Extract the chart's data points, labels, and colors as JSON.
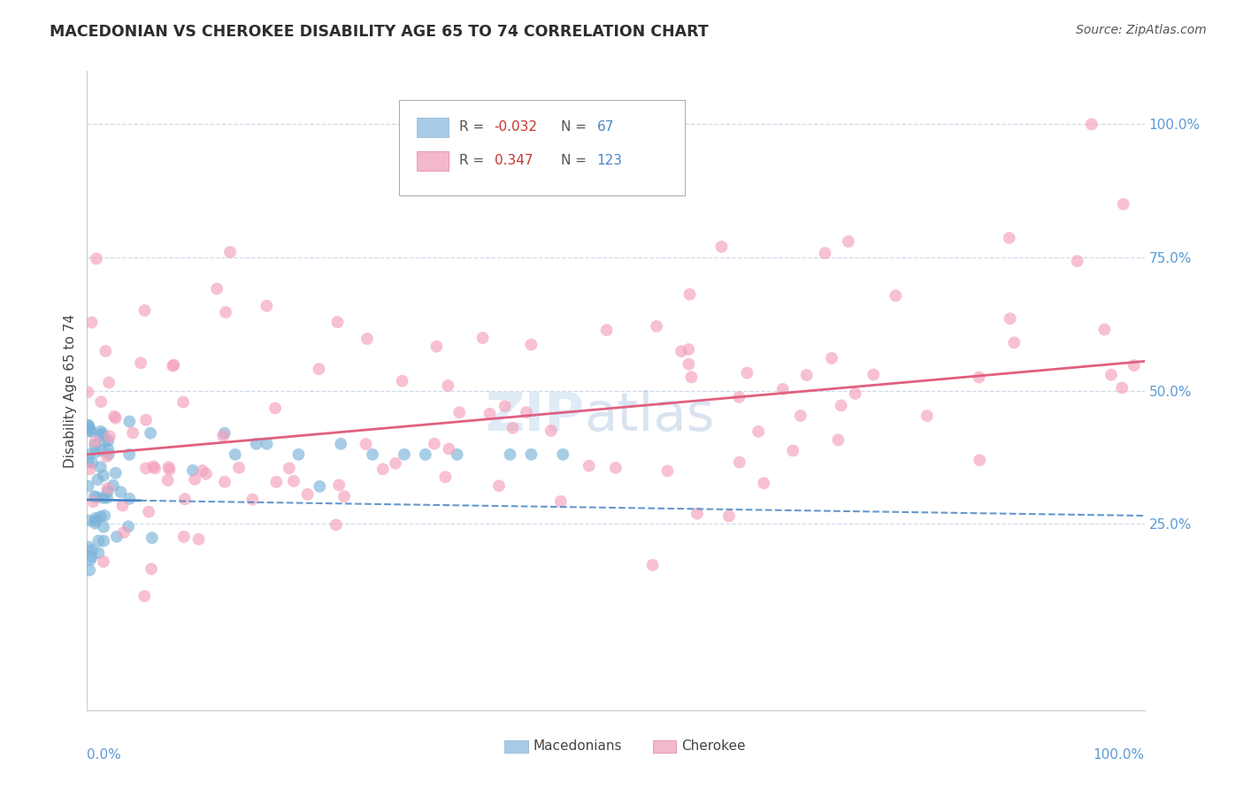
{
  "title": "MACEDONIAN VS CHEROKEE DISABILITY AGE 65 TO 74 CORRELATION CHART",
  "source": "Source: ZipAtlas.com",
  "ylabel": "Disability Age 65 to 74",
  "mac_color": "#7ab3d9",
  "cher_color": "#f4a0ba",
  "mac_line_color": "#4a86c4",
  "cher_line_color": "#e06080",
  "mac_R": "-0.032",
  "mac_N": "67",
  "cher_R": "0.347",
  "cher_N": "123",
  "legend_mac_color": "#a8cce8",
  "legend_cher_color": "#f4b8cc",
  "R_color": "#cc3333",
  "N_color": "#4a86c4",
  "watermark_color": "#c0d8ee",
  "grid_color": "#c8d8e8",
  "y_ticks": [
    0.25,
    0.5,
    0.75,
    1.0
  ],
  "y_tick_labels": [
    "25.0%",
    "50.0%",
    "75.0%",
    "100.0%"
  ],
  "axis_label_color": "#5b9bd5",
  "xlim": [
    0.0,
    1.0
  ],
  "ylim": [
    -0.1,
    1.1
  ]
}
